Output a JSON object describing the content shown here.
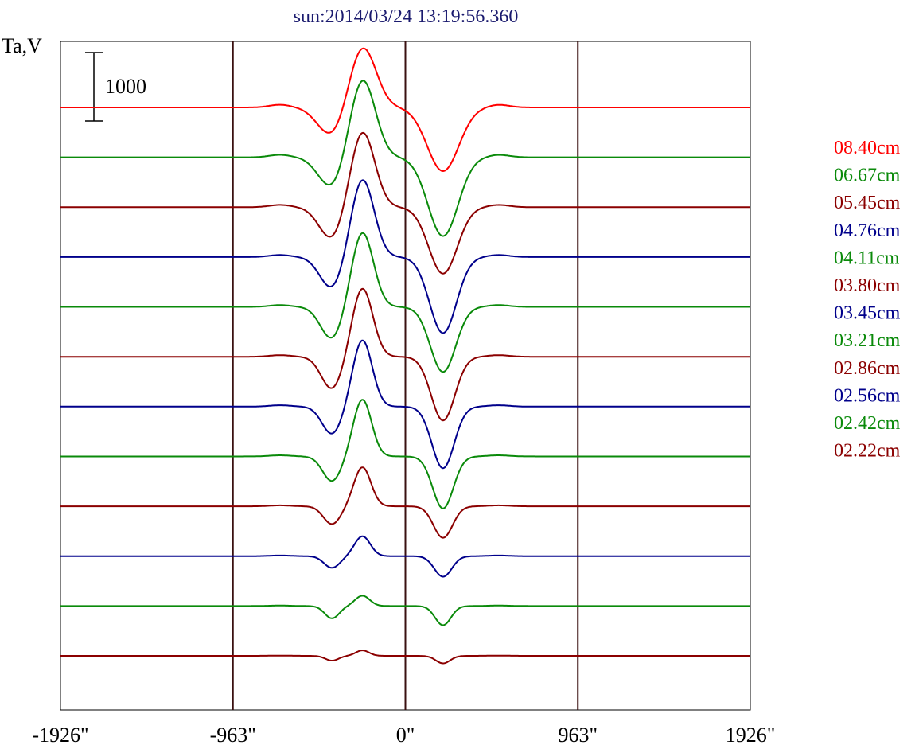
{
  "chart_data": {
    "type": "line",
    "title": "sun:2014/03/24 13:19:56.360",
    "ylabel": "Ta,V",
    "scale_bar_label": "1000",
    "scale_bar_value": 1000,
    "x_ticks": [
      {
        "value": -1926,
        "label": "-1926\""
      },
      {
        "value": -963,
        "label": "-963\""
      },
      {
        "value": 0,
        "label": "0\""
      },
      {
        "value": 963,
        "label": "963\""
      },
      {
        "value": 1926,
        "label": "1926\""
      }
    ],
    "vertical_lines_at": [
      -963,
      0,
      963
    ],
    "xlim": [
      -1926,
      1926
    ],
    "grid": false,
    "legend_position": "right",
    "colors": {
      "red": "#ff0000",
      "green": "#0a8a0a",
      "darkred": "#8b0000",
      "blue": "#00008b",
      "frame": "#000000",
      "marker_line": "#3a1010",
      "title": "#1a1a6e"
    },
    "series": [
      {
        "name": "08.40cm",
        "color": "#ff0000",
        "peak": 900,
        "dip_left": 420,
        "dip_right": 930
      },
      {
        "name": "06.67cm",
        "color": "#0a8a0a",
        "peak": 1150,
        "dip_left": 450,
        "dip_right": 1150
      },
      {
        "name": "05.45cm",
        "color": "#8b0000",
        "peak": 1110,
        "dip_left": 470,
        "dip_right": 970
      },
      {
        "name": "04.76cm",
        "color": "#00008b",
        "peak": 1140,
        "dip_left": 460,
        "dip_right": 1110
      },
      {
        "name": "04.11cm",
        "color": "#0a8a0a",
        "peak": 1090,
        "dip_left": 470,
        "dip_right": 950
      },
      {
        "name": "03.80cm",
        "color": "#8b0000",
        "peak": 1000,
        "dip_left": 470,
        "dip_right": 930
      },
      {
        "name": "03.45cm",
        "color": "#00008b",
        "peak": 970,
        "dip_left": 400,
        "dip_right": 900
      },
      {
        "name": "03.21cm",
        "color": "#0a8a0a",
        "peak": 830,
        "dip_left": 360,
        "dip_right": 760
      },
      {
        "name": "02.86cm",
        "color": "#8b0000",
        "peak": 570,
        "dip_left": 260,
        "dip_right": 460
      },
      {
        "name": "02.56cm",
        "color": "#00008b",
        "peak": 290,
        "dip_left": 170,
        "dip_right": 300
      },
      {
        "name": "02.42cm",
        "color": "#0a8a0a",
        "peak": 150,
        "dip_left": 180,
        "dip_right": 280
      },
      {
        "name": "02.22cm",
        "color": "#8b0000",
        "peak": 80,
        "dip_left": 70,
        "dip_right": 110
      }
    ]
  }
}
